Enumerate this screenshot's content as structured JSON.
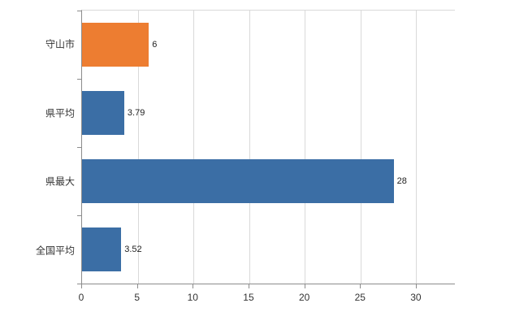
{
  "colors": {
    "background": "#ffffff",
    "axis": "#8c8c8c",
    "grid": "#d9d9d9",
    "text": "#333333",
    "bar_blue": "#3b6ea5",
    "bar_orange": "#ed7d31"
  },
  "chart_data": {
    "type": "bar",
    "orientation": "horizontal",
    "title": "",
    "xlabel": "",
    "ylabel": "",
    "categories": [
      "守山市",
      "県平均",
      "県最大",
      "全国平均"
    ],
    "values": [
      6,
      3.79,
      28,
      3.52
    ],
    "value_labels": [
      "6",
      "3.79",
      "28",
      "3.52"
    ],
    "bar_colors": [
      "#ed7d31",
      "#3b6ea5",
      "#3b6ea5",
      "#3b6ea5"
    ],
    "xlim": [
      0,
      33.5
    ],
    "x_ticks": [
      0,
      5,
      10,
      15,
      20,
      25,
      30
    ],
    "x_tick_labels": [
      "0",
      "5",
      "10",
      "15",
      "20",
      "25",
      "30"
    ],
    "grid": "vertical",
    "legend": "none"
  }
}
